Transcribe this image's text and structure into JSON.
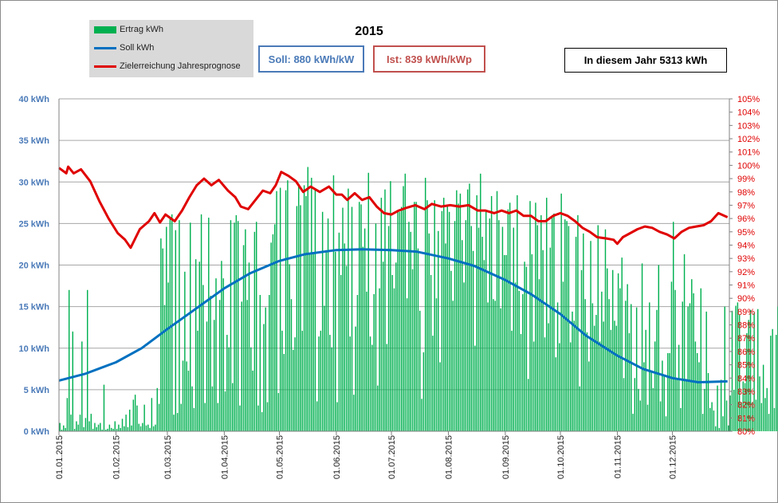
{
  "chart_data": {
    "type": "bar+line",
    "title": "2015",
    "legend": {
      "placement": "top-left",
      "entries": [
        {
          "name": "Ertrag kWh",
          "color": "#00b050",
          "kind": "bar"
        },
        {
          "name": "Soll kWh",
          "color": "#0070c0",
          "kind": "line"
        },
        {
          "name": "Zielerreichung Jahresprognose",
          "color": "#e00000",
          "kind": "line"
        }
      ]
    },
    "info_boxes": {
      "soll": "Soll: 880 kWh/kW",
      "ist": "Ist: 839 kWh/kWp",
      "total": "In diesem Jahr 5313 kWh"
    },
    "y_left": {
      "unit": "kWh",
      "ylim": [
        0,
        40
      ],
      "ticks": [
        "0 kWh",
        "5 kWh",
        "10 kWh",
        "15 kWh",
        "20 kWh",
        "25 kWh",
        "30 kWh",
        "35 kWh",
        "40 kWh"
      ]
    },
    "y_right": {
      "unit": "%",
      "ylim": [
        80,
        105
      ],
      "ticks": [
        "80%",
        "81%",
        "82%",
        "83%",
        "84%",
        "85%",
        "86%",
        "87%",
        "88%",
        "89%",
        "90%",
        "91%",
        "92%",
        "93%",
        "94%",
        "95%",
        "96%",
        "97%",
        "98%",
        "99%",
        "100%",
        "101%",
        "102%",
        "103%",
        "104%",
        "105%"
      ]
    },
    "x_axis": {
      "start": "2015-01-01",
      "end": "2015-12-31",
      "tick_labels": [
        "01.01.2015",
        "01.02.2015",
        "01.03.2015",
        "01.04.2015",
        "01.05.2015",
        "01.06.2015",
        "01.07.2015",
        "01.08.2015",
        "01.09.2015",
        "01.10.2015",
        "01.11.2015",
        "01.12.2015"
      ]
    },
    "grid": "horizontal",
    "ertrag_kwh": [
      1.0,
      0.2,
      0.7,
      0.4,
      4.0,
      17.0,
      2.0,
      12.0,
      0.3,
      1.2,
      0.8,
      2.0,
      10.8,
      0.5,
      1.6,
      17.0,
      1.2,
      2.1,
      0.3,
      1.0,
      0.5,
      0.8,
      1.0,
      0.2,
      5.6,
      0.2,
      0.3,
      0.8,
      0.4,
      0.3,
      1.2,
      0.3,
      0.8,
      0.4,
      1.5,
      0.6,
      2.0,
      0.5,
      2.6,
      0.7,
      3.8,
      4.4,
      3.1,
      0.9,
      0.6,
      1.0,
      3.2,
      0.7,
      0.8,
      0.4,
      4.0,
      0.6,
      0.8,
      5.2,
      3.3,
      23.2,
      22.0,
      15.2,
      24.6,
      17.9,
      25.7,
      26.1,
      2.0,
      24.2,
      2.2,
      25.4,
      3.3,
      8.5,
      19.2,
      8.4,
      7.3,
      25.1,
      5.4,
      2.8,
      20.7,
      12.1,
      20.4,
      26.1,
      17.6,
      3.4,
      13.2,
      25.7,
      16.3,
      5.4,
      13.4,
      18.4,
      3.4,
      15.8,
      20.5,
      18.4,
      4.8,
      11.6,
      10.1,
      25.4,
      5.8,
      25.1,
      26.0,
      25.3,
      3.1,
      15.6,
      22.4,
      24.3,
      15.8,
      20.3,
      10.1,
      7.3,
      24.0,
      25.2,
      3.1,
      16.4,
      2.3,
      12.9,
      14.9,
      3.5,
      16.4,
      22.7,
      23.7,
      24.9,
      28.9,
      4.6,
      29.3,
      12.1,
      9.3,
      29.0,
      30.2,
      20.1,
      15.9,
      9.8,
      11.3,
      27.1,
      29.8,
      27.2,
      12.1,
      29.6,
      28.3,
      31.8,
      21.4,
      30.5,
      21.3,
      29.2,
      3.6,
      11.4,
      12.1,
      26.4,
      15.1,
      21.8,
      25.6,
      11.6,
      10.1,
      30.8,
      21.6,
      3.5,
      23.9,
      18.8,
      26.9,
      22.6,
      19.9,
      29.2,
      11.4,
      27.0,
      4.4,
      12.6,
      16.4,
      27.6,
      27.3,
      22.2,
      24.4,
      16.8,
      31.1,
      11.4,
      10.4,
      16.5,
      25.0,
      5.5,
      17.2,
      28.1,
      20.4,
      29.1,
      10.5,
      24.7,
      30.1,
      18.8,
      17.2,
      20.3,
      26.4,
      26.4,
      27.0,
      29.5,
      31.0,
      16.0,
      25.2,
      24.0,
      19.5,
      27.6,
      27.6,
      22.0,
      14.5,
      3.9,
      9.5,
      30.5,
      27.8,
      23.8,
      18.8,
      11.5,
      27.8,
      16.0,
      24.1,
      8.3,
      26.5,
      28.1,
      22.6,
      27.2,
      26.4,
      19.3,
      15.7,
      25.3,
      29.0,
      27.4,
      28.6,
      23.0,
      17.9,
      25.4,
      29.1,
      29.8,
      24.7,
      21.7,
      10.3,
      28.4,
      24.5,
      31.0,
      23.4,
      20.6,
      26.6,
      15.5,
      25.6,
      28.3,
      15.9,
      15.7,
      28.9,
      25.4,
      14.8,
      24.6,
      21.2,
      21.2,
      26.7,
      27.5,
      12.1,
      24.5,
      17.9,
      28.4,
      16.9,
      11.7,
      16.5,
      20.4,
      19.8,
      6.3,
      27.7,
      21.3,
      10.8,
      27.5,
      24.8,
      18.3,
      26.0,
      21.8,
      11.3,
      28.1,
      13.0,
      22.1,
      25.9,
      26.2,
      8.9,
      15.5,
      10.6,
      28.6,
      18.0,
      25.5,
      25.3,
      24.7,
      10.7,
      14.4,
      13.3,
      23.4,
      26.0,
      5.4,
      19.4,
      23.8,
      15.9,
      11.9,
      8.4,
      22.9,
      15.4,
      12.7,
      14.0,
      24.8,
      10.8,
      16.8,
      13.2,
      24.3,
      19.6,
      15.9,
      12.2,
      19.4,
      13.3,
      12.7,
      19.0,
      17.2,
      20.9,
      6.4,
      15.7,
      17.7,
      11.8,
      15.3,
      2.1,
      6.4,
      14.9,
      5.1,
      3.7,
      20.2,
      8.3,
      12.2,
      3.2,
      15.5,
      7.1,
      5.2,
      10.8,
      14.6,
      20.0,
      3.6,
      8.5,
      6.8,
      1.8,
      9.4,
      9.4,
      18.0,
      25.2,
      17.0,
      6.4,
      10.4,
      2.8,
      15.6,
      21.3,
      6.3,
      15.0,
      15.4,
      18.3,
      16.6,
      10.8,
      9.4,
      8.3,
      17.2,
      2.1,
      5.1,
      14.4,
      7.0,
      2.8,
      3.5,
      2.5,
      0.6,
      5.5,
      0.4,
      6.2,
      1.8,
      15.0,
      3.7,
      0.7,
      4.3,
      14.5,
      5.0,
      15.1,
      15.5,
      14.0,
      3.5,
      6.0,
      5.8,
      11.8,
      13.4,
      14.6,
      3.5,
      14.3,
      3.8,
      14.7,
      6.6,
      3.4,
      8.0,
      4.0,
      5.2,
      2.1,
      11.5,
      12.3,
      2.8,
      11.6,
      15.0,
      15.2,
      15.7
    ],
    "soll_kwh": [
      [
        1,
        6.1
      ],
      [
        15,
        6.9
      ],
      [
        32,
        8.3
      ],
      [
        46,
        10.0
      ],
      [
        60,
        12.3
      ],
      [
        74,
        14.5
      ],
      [
        91,
        17.2
      ],
      [
        105,
        19.0
      ],
      [
        121,
        20.5
      ],
      [
        135,
        21.3
      ],
      [
        152,
        21.8
      ],
      [
        166,
        21.9
      ],
      [
        182,
        21.8
      ],
      [
        196,
        21.6
      ],
      [
        213,
        20.8
      ],
      [
        227,
        19.9
      ],
      [
        244,
        18.2
      ],
      [
        258,
        16.5
      ],
      [
        274,
        14.1
      ],
      [
        288,
        11.5
      ],
      [
        305,
        9.1
      ],
      [
        319,
        7.5
      ],
      [
        335,
        6.4
      ],
      [
        349,
        5.9
      ],
      [
        365,
        6.0
      ]
    ],
    "zielerreichung_pct": [
      [
        1,
        99.8
      ],
      [
        5,
        99.4
      ],
      [
        6,
        99.9
      ],
      [
        9,
        99.4
      ],
      [
        13,
        99.7
      ],
      [
        18,
        98.8
      ],
      [
        23,
        97.3
      ],
      [
        28,
        96.0
      ],
      [
        33,
        94.9
      ],
      [
        37,
        94.4
      ],
      [
        40,
        93.8
      ],
      [
        45,
        95.2
      ],
      [
        50,
        95.8
      ],
      [
        53,
        96.4
      ],
      [
        56,
        95.7
      ],
      [
        59,
        96.3
      ],
      [
        64,
        95.8
      ],
      [
        68,
        96.6
      ],
      [
        72,
        97.6
      ],
      [
        76,
        98.5
      ],
      [
        80,
        99.0
      ],
      [
        84,
        98.5
      ],
      [
        88,
        98.9
      ],
      [
        93,
        98.1
      ],
      [
        97,
        97.6
      ],
      [
        100,
        96.9
      ],
      [
        104,
        96.7
      ],
      [
        108,
        97.4
      ],
      [
        112,
        98.1
      ],
      [
        116,
        97.9
      ],
      [
        119,
        98.5
      ],
      [
        122,
        99.5
      ],
      [
        126,
        99.2
      ],
      [
        130,
        98.8
      ],
      [
        134,
        98.0
      ],
      [
        138,
        98.4
      ],
      [
        143,
        98.0
      ],
      [
        148,
        98.4
      ],
      [
        152,
        97.8
      ],
      [
        155,
        97.8
      ],
      [
        158,
        97.4
      ],
      [
        162,
        97.9
      ],
      [
        166,
        97.4
      ],
      [
        170,
        97.6
      ],
      [
        174,
        96.9
      ],
      [
        178,
        96.4
      ],
      [
        182,
        96.3
      ],
      [
        186,
        96.6
      ],
      [
        190,
        96.8
      ],
      [
        195,
        97.0
      ],
      [
        200,
        96.7
      ],
      [
        204,
        97.1
      ],
      [
        209,
        96.9
      ],
      [
        214,
        97.0
      ],
      [
        219,
        96.9
      ],
      [
        224,
        97.0
      ],
      [
        229,
        96.6
      ],
      [
        233,
        96.6
      ],
      [
        238,
        96.4
      ],
      [
        242,
        96.6
      ],
      [
        246,
        96.4
      ],
      [
        250,
        96.6
      ],
      [
        254,
        96.2
      ],
      [
        258,
        96.2
      ],
      [
        262,
        95.8
      ],
      [
        266,
        95.8
      ],
      [
        270,
        96.2
      ],
      [
        274,
        96.4
      ],
      [
        278,
        96.2
      ],
      [
        282,
        95.8
      ],
      [
        286,
        95.3
      ],
      [
        290,
        95.0
      ],
      [
        294,
        94.6
      ],
      [
        299,
        94.5
      ],
      [
        303,
        94.4
      ],
      [
        305,
        94.1
      ],
      [
        308,
        94.6
      ],
      [
        312,
        94.9
      ],
      [
        316,
        95.2
      ],
      [
        320,
        95.4
      ],
      [
        324,
        95.3
      ],
      [
        328,
        95.0
      ],
      [
        332,
        94.8
      ],
      [
        336,
        94.5
      ],
      [
        340,
        95.0
      ],
      [
        344,
        95.3
      ],
      [
        348,
        95.4
      ],
      [
        352,
        95.5
      ],
      [
        356,
        95.8
      ],
      [
        360,
        96.4
      ],
      [
        365,
        96.1
      ]
    ]
  }
}
